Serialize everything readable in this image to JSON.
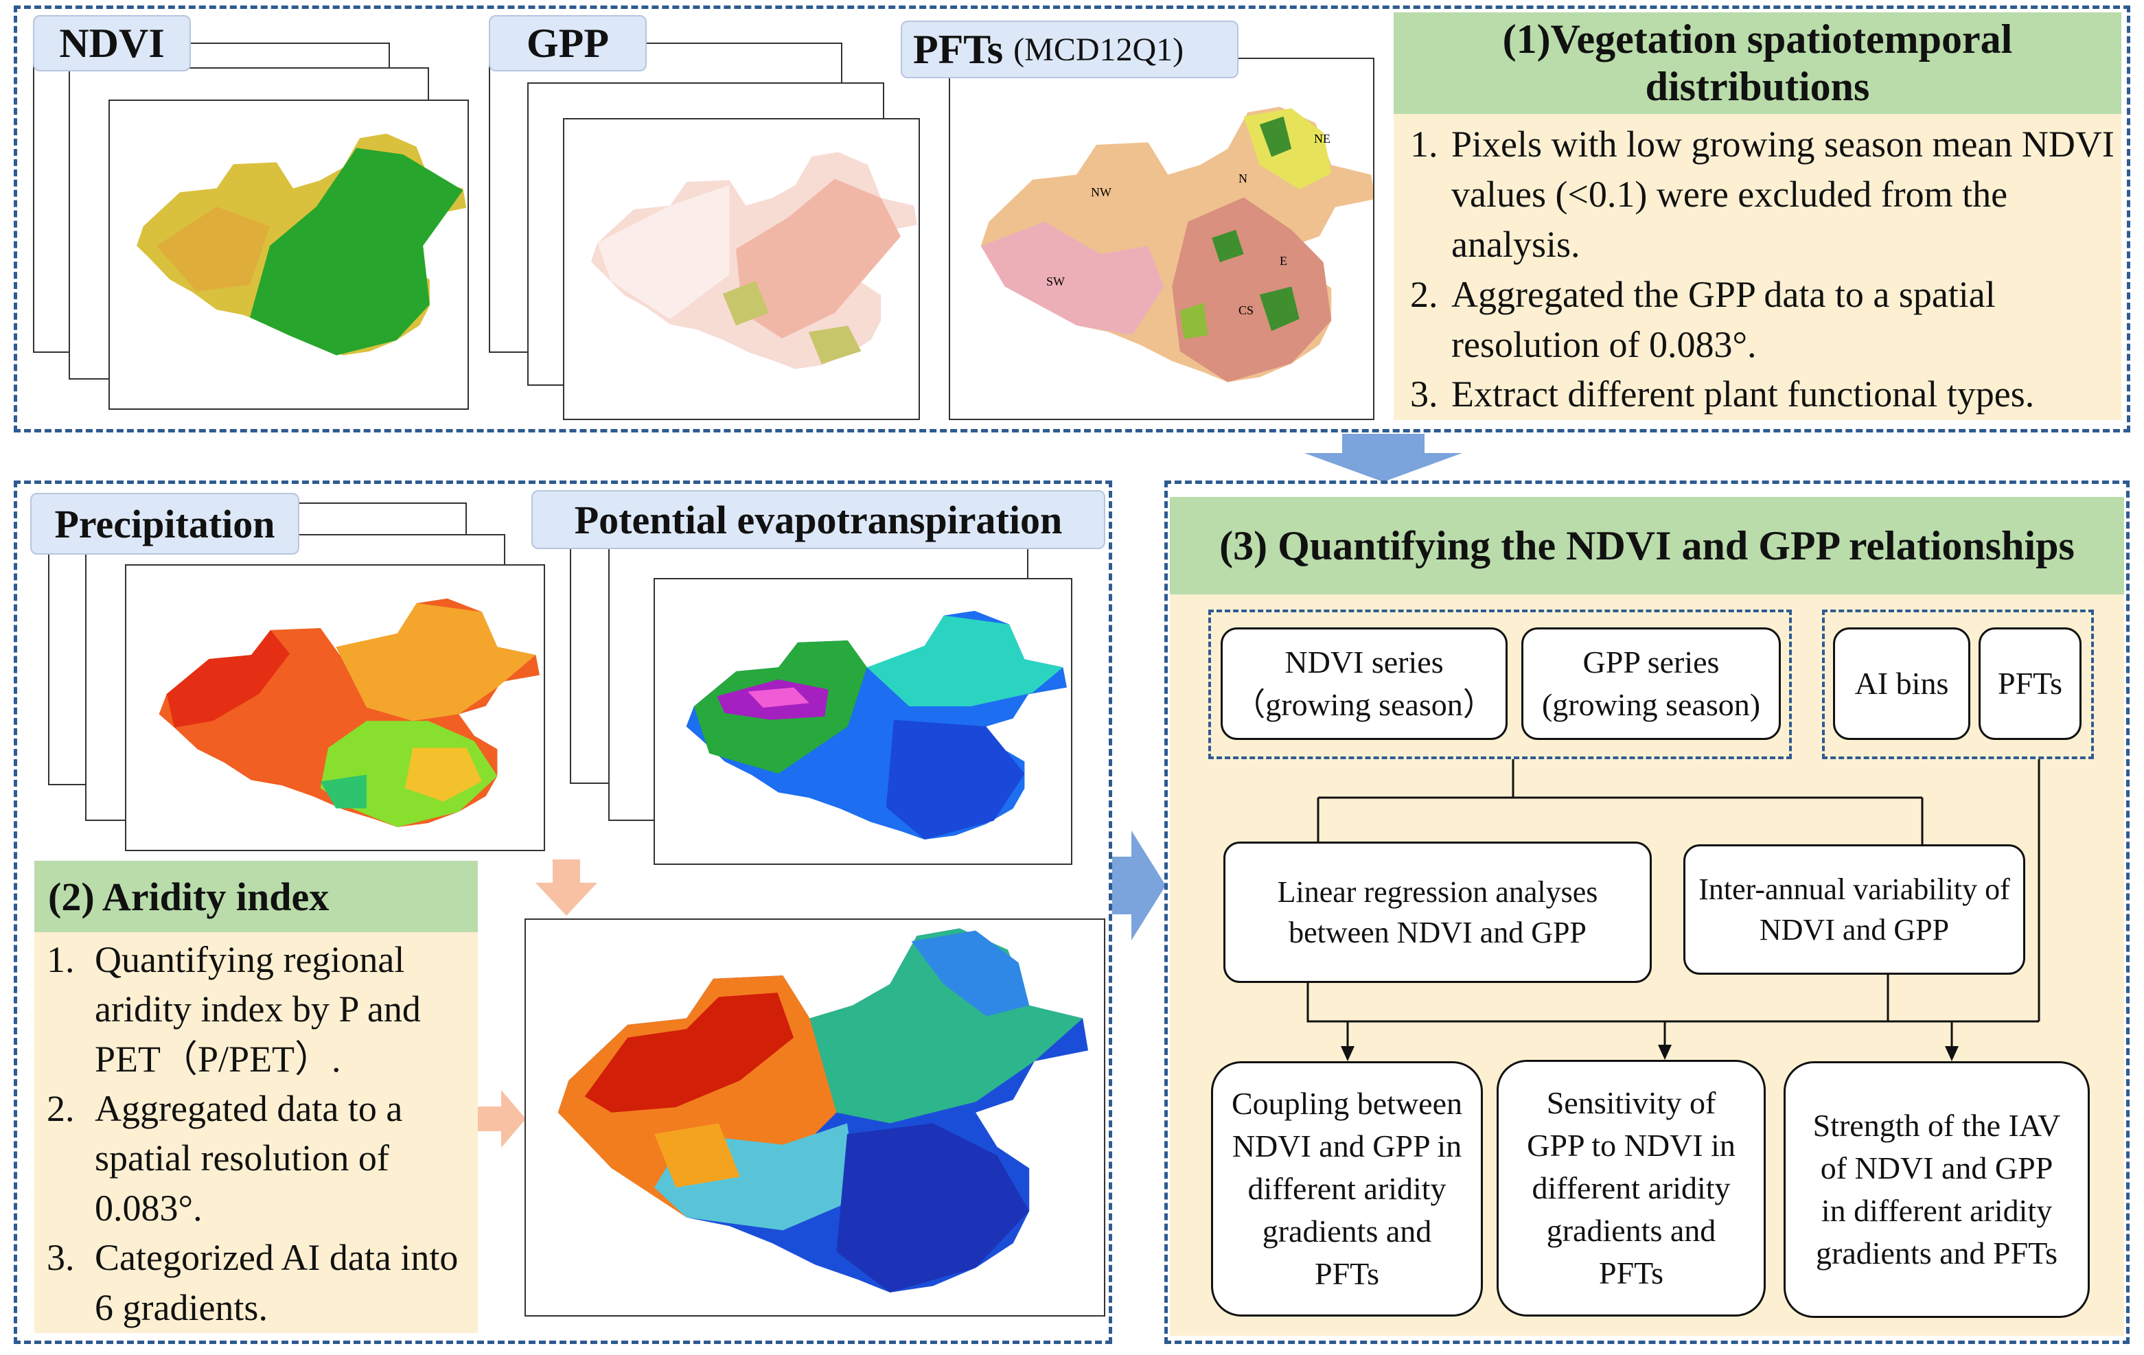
{
  "top": {
    "labels": {
      "ndvi": "NDVI",
      "gpp": "GPP",
      "pfts": "PFTs",
      "pfts_product": "(MCD12Q1)"
    },
    "pft_region_labels": [
      "NE",
      "N",
      "NW",
      "E",
      "SW",
      "CS"
    ],
    "section1": {
      "title": "(1)Vegetation spatiotemporal distributions",
      "steps": [
        {
          "num": "1.",
          "text": "Pixels with low growing season mean NDVI values (<0.1) were excluded from the analysis."
        },
        {
          "num": "2.",
          "text": "Aggregated the GPP data to a spatial resolution of 0.083°."
        },
        {
          "num": "3.",
          "text": "Extract different plant functional types."
        }
      ]
    }
  },
  "left": {
    "labels": {
      "precipitation": "Precipitation",
      "pet": "Potential evapotranspiration"
    },
    "section2": {
      "title": "(2) Aridity index",
      "steps": [
        {
          "num": "1.",
          "text": "Quantifying regional aridity index by P and PET（P/PET）."
        },
        {
          "num": "2.",
          "text": "Aggregated data to a spatial resolution of 0.083°."
        },
        {
          "num": "3.",
          "text": "Categorized AI data into 6 gradients."
        }
      ]
    }
  },
  "right": {
    "section3": {
      "title": "(3) Quantifying the NDVI and GPP relationships",
      "inputs": {
        "ndvi_series": "NDVI series （growing season）",
        "gpp_series": "GPP series (growing season)",
        "ai_bins": "AI bins",
        "pfts": "PFTs"
      },
      "analyses": {
        "linear_regression": "Linear regression analyses between NDVI and GPP",
        "iav": "Inter-annual variability of NDVI and GPP"
      },
      "outputs": {
        "coupling": "Coupling between NDVI and GPP in different aridity gradients and PFTs",
        "sensitivity": "Sensitivity of GPP to NDVI in different aridity gradients and PFTs",
        "strength": "Strength of the IAV of NDVI and GPP in different aridity gradients and PFTs"
      }
    }
  },
  "colors": {
    "dashed_border": "#2e5b91",
    "label_bg": "#dce7f7",
    "green_header": "#b9dcaa",
    "beige_panel": "#fdf0d2",
    "arrow_blue": "#7ba3dc",
    "arrow_peach": "#f8c1a3"
  }
}
